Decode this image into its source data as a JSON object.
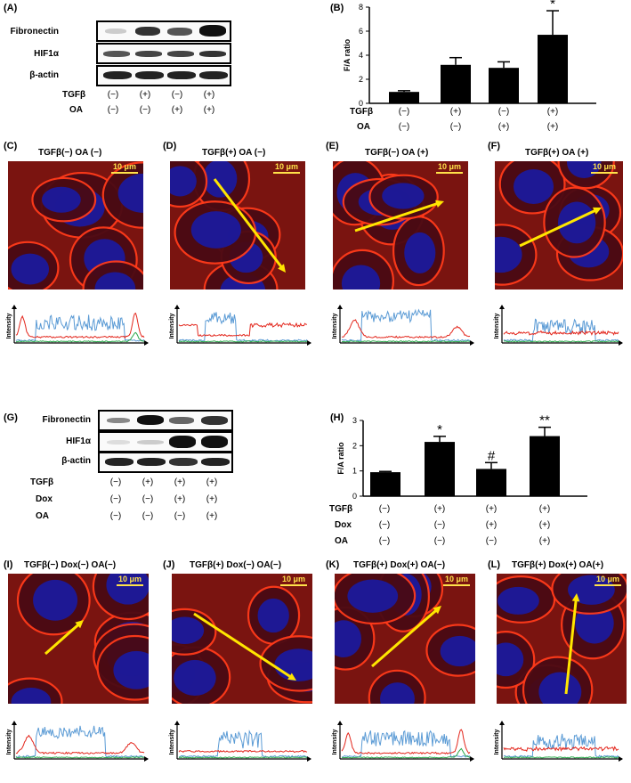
{
  "panel_letters": [
    "(A)",
    "(B)",
    "(C)",
    "(D)",
    "(E)",
    "(F)",
    "(G)",
    "(H)",
    "(I)",
    "(J)",
    "(K)",
    "(L)"
  ],
  "blotA": {
    "rows": [
      "Fibronectin",
      "HIF1α",
      "β-actin"
    ],
    "conditions": [
      {
        "label": "TGFβ",
        "values": [
          "(−)",
          "(+)",
          "(−)",
          "(+)"
        ]
      },
      {
        "label": "OA",
        "values": [
          "(−)",
          "(−)",
          "(+)",
          "(+)"
        ]
      }
    ]
  },
  "blotG": {
    "rows": [
      "Fibronectin",
      "HIF1α",
      "β-actin"
    ],
    "conditions": [
      {
        "label": "TGFβ",
        "values": [
          "(−)",
          "(+)",
          "(+)",
          "(+)"
        ]
      },
      {
        "label": "Dox",
        "values": [
          "(−)",
          "(−)",
          "(+)",
          "(+)"
        ]
      },
      {
        "label": "OA",
        "values": [
          "(−)",
          "(−)",
          "(−)",
          "(+)"
        ]
      }
    ]
  },
  "chartB_conditions": [
    {
      "label": "TGFβ",
      "values": [
        "(−)",
        "(+)",
        "(−)",
        "(+)"
      ]
    },
    {
      "label": "OA",
      "values": [
        "(−)",
        "(−)",
        "(+)",
        "(+)"
      ]
    }
  ],
  "chartH_conditions": [
    {
      "label": "TGFβ",
      "values": [
        "(−)",
        "(+)",
        "(+)",
        "(+)"
      ]
    },
    {
      "label": "Dox",
      "values": [
        "(−)",
        "(−)",
        "(+)",
        "(+)"
      ]
    },
    {
      "label": "OA",
      "values": [
        "(−)",
        "(−)",
        "(−)",
        "(+)"
      ]
    }
  ],
  "chart_data": [
    {
      "type": "bar",
      "panel": "(B)",
      "ylabel": "F/A ratio",
      "ylim": [
        0,
        8
      ],
      "yticks": [
        0,
        2,
        4,
        6,
        8
      ],
      "values": [
        0.95,
        3.2,
        2.95,
        5.7
      ],
      "errors": [
        0.1,
        0.6,
        0.5,
        2.0
      ],
      "annotations": [
        "",
        "",
        "",
        "*"
      ]
    },
    {
      "type": "bar",
      "panel": "(H)",
      "ylabel": "F/A ratio",
      "ylim": [
        0,
        3
      ],
      "yticks": [
        0,
        1,
        2,
        3
      ],
      "values": [
        0.95,
        2.15,
        1.08,
        2.38
      ],
      "errors": [
        0.03,
        0.22,
        0.25,
        0.35
      ],
      "annotations": [
        "",
        "*",
        "#",
        "**"
      ]
    }
  ],
  "micrographs": [
    {
      "letter": "(C)",
      "title": "TGFβ(−)   OA  (−)",
      "scale": "10 μm"
    },
    {
      "letter": "(D)",
      "title": "TGFβ(+)   OA  (−)",
      "scale": "10 μm"
    },
    {
      "letter": "(E)",
      "title": "TGFβ(−)   OA  (+)",
      "scale": "10 μm"
    },
    {
      "letter": "(F)",
      "title": "TGFβ(+)   OA  (+)",
      "scale": "10 μm"
    },
    {
      "letter": "(I)",
      "title": "TGFβ(−)  Dox(−) OA(−)",
      "scale": "10 μm"
    },
    {
      "letter": "(J)",
      "title": "TGFβ(+)  Dox(−) OA(−)",
      "scale": "10 μm"
    },
    {
      "letter": "(K)",
      "title": "TGFβ(+)  Dox(+) OA(−)",
      "scale": "10 μm"
    },
    {
      "letter": "(L)",
      "title": "TGFβ(+)  Dox(+) OA(+)",
      "scale": "10 μm"
    }
  ],
  "profile_ylabel": "Intensity",
  "colors": {
    "red": "#e3261c",
    "blue": "#5b9bd5",
    "green": "#2aa84a",
    "arrow": "#ffe600",
    "nucleus": "#1a1aa0"
  }
}
